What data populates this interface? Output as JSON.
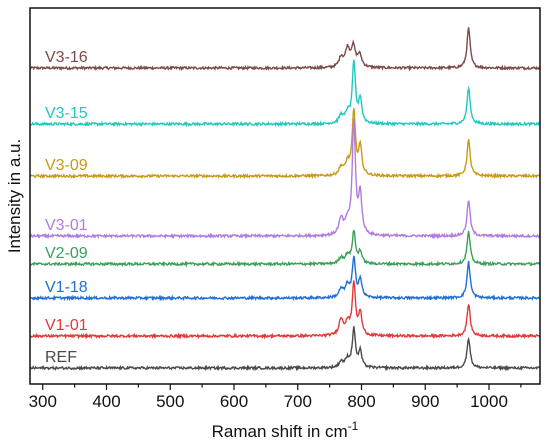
{
  "chart_data": {
    "type": "line",
    "xlabel": "Raman shift in cm",
    "xlabel_superscript": "-1",
    "ylabel": "Intensity in a.u.",
    "xlim": [
      280,
      1080
    ],
    "x_ticks": [
      300,
      400,
      500,
      600,
      700,
      800,
      900,
      1000
    ],
    "y_ticks": false,
    "grid": false,
    "legend": "inline labels at left",
    "series": [
      {
        "name": "V3-16",
        "color": "#7a4a4a",
        "baseline": 7.5,
        "peaks": [
          [
            768,
            0.25,
            4
          ],
          [
            778,
            0.45,
            4
          ],
          [
            787,
            0.5,
            4
          ],
          [
            797,
            0.3,
            4
          ],
          [
            968,
            1.0,
            3
          ]
        ]
      },
      {
        "name": "V3-15",
        "color": "#1fc9c0",
        "baseline": 6.1,
        "peaks": [
          [
            768,
            0.2,
            4
          ],
          [
            778,
            0.25,
            4
          ],
          [
            788,
            1.5,
            3
          ],
          [
            798,
            0.6,
            3
          ],
          [
            968,
            0.9,
            3
          ]
        ]
      },
      {
        "name": "V3-09",
        "color": "#c89a16",
        "baseline": 4.8,
        "peaks": [
          [
            768,
            0.2,
            4
          ],
          [
            778,
            0.3,
            4
          ],
          [
            788,
            1.6,
            3
          ],
          [
            798,
            0.7,
            3
          ],
          [
            968,
            0.9,
            3
          ]
        ]
      },
      {
        "name": "V3-01",
        "color": "#b07ddd",
        "baseline": 3.3,
        "peaks": [
          [
            768,
            0.4,
            4
          ],
          [
            778,
            0.3,
            4
          ],
          [
            788,
            2.8,
            3
          ],
          [
            798,
            1.0,
            3
          ],
          [
            968,
            0.9,
            3
          ]
        ]
      },
      {
        "name": "V2-09",
        "color": "#3aa05a",
        "baseline": 2.6,
        "peaks": [
          [
            768,
            0.15,
            4
          ],
          [
            778,
            0.2,
            4
          ],
          [
            788,
            0.8,
            3
          ],
          [
            798,
            0.3,
            3
          ],
          [
            968,
            0.8,
            3
          ]
        ]
      },
      {
        "name": "V1-18",
        "color": "#1f6fd6",
        "baseline": 1.75,
        "peaks": [
          [
            768,
            0.2,
            4
          ],
          [
            778,
            0.3,
            4
          ],
          [
            788,
            0.95,
            3
          ],
          [
            798,
            0.45,
            3
          ],
          [
            968,
            0.9,
            3
          ]
        ]
      },
      {
        "name": "V1-01",
        "color": "#e03a3a",
        "baseline": 0.8,
        "peaks": [
          [
            768,
            0.4,
            4
          ],
          [
            778,
            0.3,
            4
          ],
          [
            788,
            1.3,
            3
          ],
          [
            798,
            0.55,
            3
          ],
          [
            968,
            0.8,
            3
          ]
        ]
      },
      {
        "name": "REF",
        "color": "#4a4a4a",
        "baseline": 0.0,
        "peaks": [
          [
            768,
            0.15,
            4
          ],
          [
            778,
            0.2,
            4
          ],
          [
            788,
            0.95,
            3
          ],
          [
            798,
            0.4,
            3
          ],
          [
            968,
            0.75,
            3
          ]
        ]
      }
    ]
  }
}
